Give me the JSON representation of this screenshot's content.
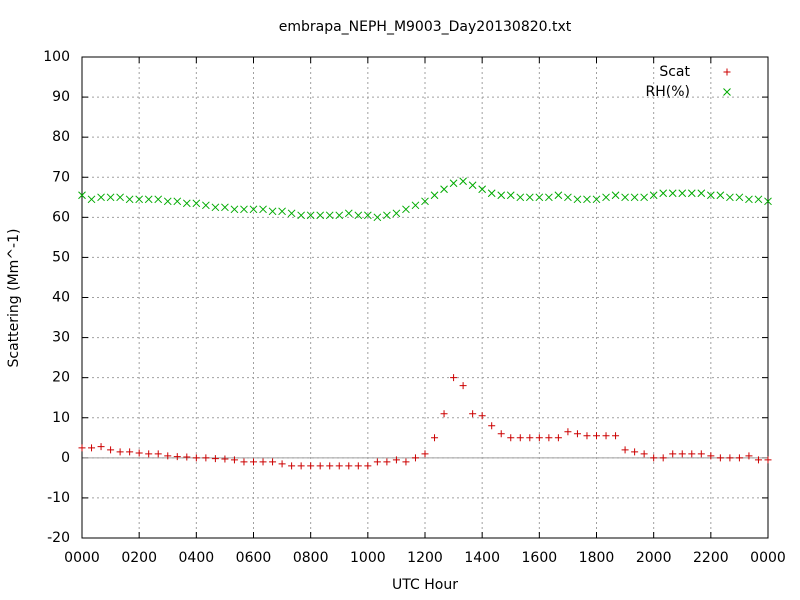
{
  "chart_data": {
    "type": "scatter",
    "title": "embrapa_NEPH_M9003_Day20130820.txt",
    "x_label": "UTC Hour",
    "y_label": "Scattering (Mm^-1)",
    "x": [
      0,
      20,
      40,
      60,
      80,
      100,
      120,
      140,
      160,
      180,
      200,
      220,
      240,
      260,
      280,
      300,
      320,
      340,
      360,
      380,
      400,
      420,
      440,
      460,
      480,
      500,
      520,
      540,
      560,
      580,
      600,
      620,
      640,
      660,
      680,
      700,
      720,
      740,
      760,
      780,
      800,
      820,
      840,
      860,
      880,
      900,
      920,
      940,
      960,
      980,
      1000,
      1020,
      1040,
      1060,
      1080,
      1100,
      1120,
      1140,
      1160,
      1180,
      1200,
      1220,
      1240,
      1260,
      1280,
      1300,
      1320,
      1340,
      1360,
      1380,
      1400,
      1420,
      1440
    ],
    "series": [
      {
        "name": "Scat",
        "color": "#cc0000",
        "marker": "plus",
        "values": [
          2.5,
          2.5,
          2.8,
          2,
          1.5,
          1.5,
          1.2,
          1,
          1,
          0.5,
          0.3,
          0.2,
          0,
          0,
          -0.2,
          -0.3,
          -0.5,
          -1,
          -1,
          -1,
          -1,
          -1.5,
          -2,
          -2,
          -2,
          -2,
          -2,
          -2,
          -2,
          -2,
          -2,
          -1,
          -1,
          -0.5,
          -1,
          0,
          1,
          5,
          11,
          20,
          18,
          11,
          10.5,
          8,
          6,
          5,
          5,
          5,
          5,
          5,
          5,
          6.5,
          6,
          5.5,
          5.5,
          5.5,
          5.5,
          2,
          1.5,
          1,
          0,
          0,
          1,
          1,
          1,
          1,
          0.5,
          0,
          0,
          0,
          0.5,
          -0.5,
          -0.5
        ]
      },
      {
        "name": "RH(%)",
        "color": "#00aa00",
        "marker": "cross",
        "values": [
          65.5,
          64.5,
          65,
          65,
          65,
          64.5,
          64.5,
          64.5,
          64.5,
          64,
          64,
          63.5,
          63.5,
          63,
          62.5,
          62.5,
          62,
          62,
          62,
          62,
          61.5,
          61.5,
          61,
          60.5,
          60.5,
          60.5,
          60.5,
          60.5,
          61,
          60.5,
          60.5,
          60,
          60.5,
          61,
          62,
          63,
          64,
          65.5,
          67,
          68.5,
          69,
          68,
          67,
          66,
          65.5,
          65.5,
          65,
          65,
          65,
          65,
          65.5,
          65,
          64.5,
          64.5,
          64.5,
          65,
          65.5,
          65,
          65,
          65,
          65.5,
          66,
          66,
          66,
          66,
          66,
          65.5,
          65.5,
          65,
          65,
          64.5,
          64.5,
          64
        ]
      }
    ],
    "xlim": [
      0,
      1440
    ],
    "xticks": [
      {
        "value": 0,
        "label": "0000"
      },
      {
        "value": 120,
        "label": "0200"
      },
      {
        "value": 240,
        "label": "0400"
      },
      {
        "value": 360,
        "label": "0600"
      },
      {
        "value": 480,
        "label": "0800"
      },
      {
        "value": 600,
        "label": "1000"
      },
      {
        "value": 720,
        "label": "1200"
      },
      {
        "value": 840,
        "label": "1400"
      },
      {
        "value": 960,
        "label": "1600"
      },
      {
        "value": 1080,
        "label": "1800"
      },
      {
        "value": 1200,
        "label": "2000"
      },
      {
        "value": 1320,
        "label": "2200"
      },
      {
        "value": 1440,
        "label": "0000"
      }
    ],
    "ylim": [
      -20,
      100
    ],
    "yticks": [
      -20,
      -10,
      0,
      10,
      20,
      30,
      40,
      50,
      60,
      70,
      80,
      90,
      100
    ],
    "grid": true,
    "zero_line": true,
    "legend": "top-right"
  }
}
